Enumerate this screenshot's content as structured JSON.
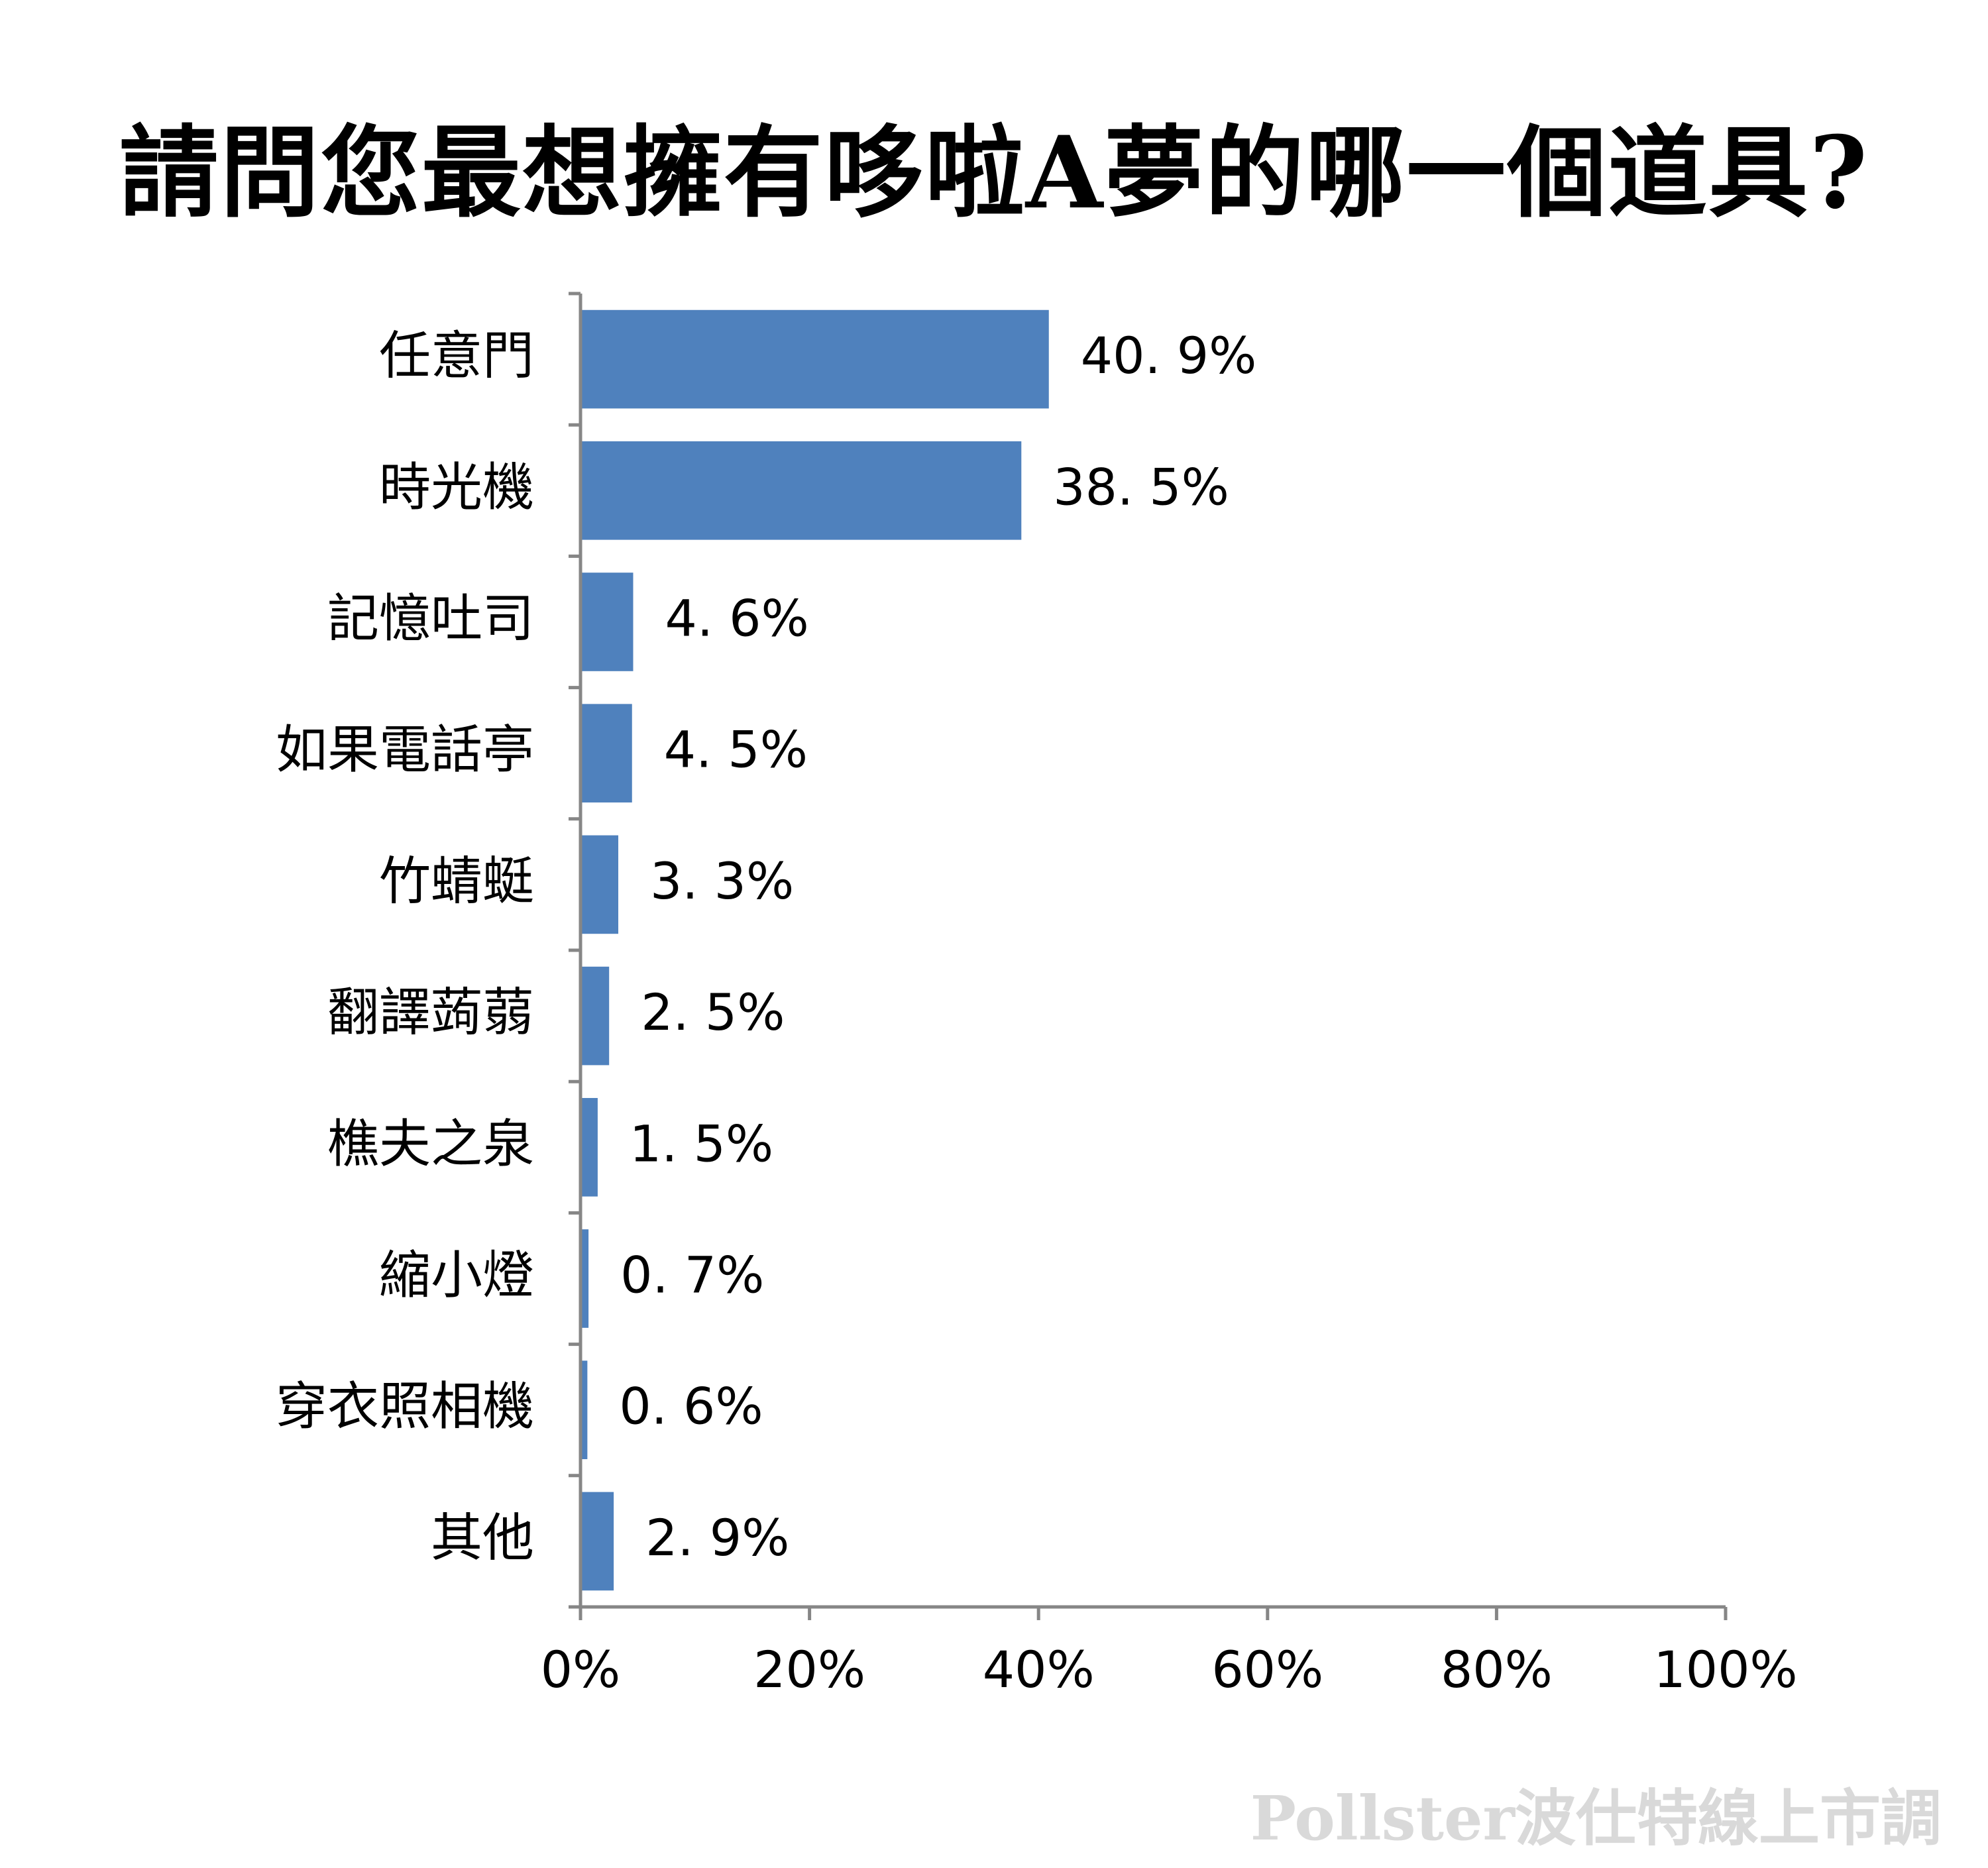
{
  "chart_data": {
    "type": "bar",
    "orientation": "horizontal",
    "title": "請問您最想擁有哆啦A夢的哪一個道具?",
    "categories": [
      "任意門",
      "時光機",
      "記憶吐司",
      "如果電話亭",
      "竹蜻蜓",
      "翻譯蒟蒻",
      "樵夫之泉",
      "縮小燈",
      "穿衣照相機",
      "其他"
    ],
    "values": [
      40.9,
      38.5,
      4.6,
      4.5,
      3.3,
      2.5,
      1.5,
      0.7,
      0.6,
      2.9
    ],
    "value_labels": [
      "40. 9%",
      "38. 5%",
      "4. 6%",
      "4. 5%",
      "3. 3%",
      "2. 5%",
      "1. 5%",
      "0. 7%",
      "0. 6%",
      "2. 9%"
    ],
    "xlim": [
      0,
      100
    ],
    "x_ticks": [
      0,
      20,
      40,
      60,
      80,
      100
    ],
    "x_tick_labels": [
      "0%",
      "20%",
      "40%",
      "60%",
      "80%",
      "100%"
    ],
    "xlabel": "",
    "ylabel": "",
    "grid": false,
    "legend": "none",
    "bar_color": "#4f81bd",
    "axis_color": "#868686"
  },
  "watermark": "Pollster波仕特線上市調"
}
